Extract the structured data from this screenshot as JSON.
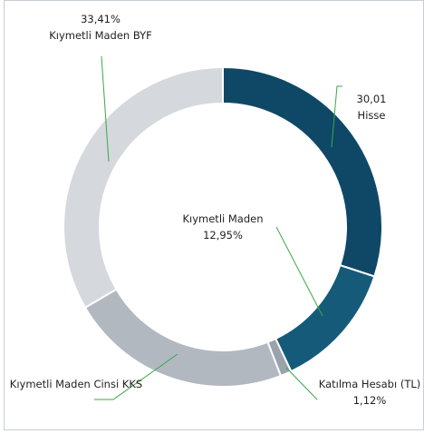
{
  "chart_data": {
    "type": "donut",
    "categories": [
      "Hisse",
      "Kıymetli Maden",
      "Katılma Hesabı (TL)",
      "Kıymetli Maden Cinsi KKS",
      "Kıymetli Maden BYF"
    ],
    "values": [
      30.01,
      12.95,
      1.12,
      22.51,
      33.41
    ],
    "value_labels": [
      "30,01",
      "12,95%",
      "1,12%",
      null,
      "33,41%"
    ],
    "colors": [
      "#0f4866",
      "#165a79",
      "#9aa2ab",
      "#b1b8c0",
      "#d5d9dd"
    ]
  }
}
